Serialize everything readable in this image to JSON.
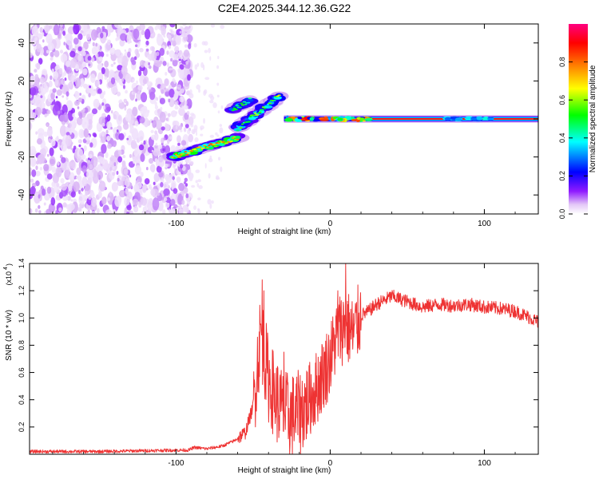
{
  "figure_title": "C2E4.2025.344.12.36.G22",
  "chart_data": [
    {
      "type": "heatmap",
      "title": "C2E4.2025.344.12.36.G22",
      "xlabel": "Height of straight line (km)",
      "ylabel": "Frequency (Hz)",
      "xlim": [
        -195,
        135
      ],
      "ylim": [
        -50,
        50
      ],
      "x_ticks": [
        -100,
        0,
        100
      ],
      "x_tick_labels": [
        "-100",
        "0",
        "100"
      ],
      "y_ticks": [
        -40,
        -20,
        0,
        20,
        40
      ],
      "y_tick_labels": [
        "-40",
        "-20",
        "0",
        "20",
        "40"
      ],
      "colorbar": {
        "label": "Normalized spectral amplitude",
        "range": [
          0,
          1
        ],
        "ticks": [
          0.0,
          0.2,
          0.4,
          0.6,
          0.8
        ],
        "tick_labels": [
          "0.0",
          "0.2",
          "0.4",
          "0.6",
          "0.8"
        ],
        "colors": [
          "#ffffff",
          "#d9b3f5",
          "#7f00ff",
          "#0000ff",
          "#00ffff",
          "#00ff00",
          "#ffff00",
          "#ff8000",
          "#ff0000",
          "#ff0080"
        ]
      },
      "noise_region_x": [
        -195,
        -90
      ],
      "features": [
        {
          "name": "main-line",
          "x": [
            -30,
            135
          ],
          "freq": [
            0,
            0
          ],
          "amplitude": 0.9
        },
        {
          "name": "rising-trace",
          "x": [
            -102,
            -60
          ],
          "freq": [
            -20,
            -10
          ],
          "amplitude": 0.75
        },
        {
          "name": "upper-branch",
          "x": [
            -60,
            -33
          ],
          "freq": [
            -5,
            12
          ],
          "amplitude": 0.6
        },
        {
          "name": "side-blob",
          "x": [
            -63,
            -52
          ],
          "freq": [
            5,
            10
          ],
          "amplitude": 0.55
        }
      ]
    },
    {
      "type": "line",
      "xlabel": "Height of straight line (km)",
      "ylabel": "SNR (10 * v/v)",
      "y_multiplier_label": "(x10",
      "y_multiplier_exp": "4",
      "xlim": [
        -195,
        135
      ],
      "ylim": [
        0,
        1.4
      ],
      "x_ticks": [
        -100,
        0,
        100
      ],
      "x_tick_labels": [
        "-100",
        "0",
        "100"
      ],
      "y_ticks": [
        0.2,
        0.4,
        0.6,
        0.8,
        1.0,
        1.2,
        1.4
      ],
      "y_tick_labels": [
        "0.2",
        "0.4",
        "0.6",
        "0.8",
        "1.0",
        "1.2",
        "1.4"
      ],
      "line_color": "#ee3333",
      "series": [
        {
          "name": "SNR",
          "x": [
            -195,
            -150,
            -100,
            -92,
            -88,
            -80,
            -70,
            -62,
            -55,
            -50,
            -45,
            -40,
            -35,
            -30,
            -25,
            -20,
            -15,
            -10,
            -5,
            0,
            5,
            10,
            15,
            20,
            25,
            30,
            40,
            50,
            60,
            70,
            80,
            90,
            100,
            110,
            120,
            130,
            135
          ],
          "values": [
            0.02,
            0.02,
            0.03,
            0.03,
            0.05,
            0.04,
            0.06,
            0.1,
            0.16,
            0.35,
            0.9,
            0.55,
            0.4,
            0.3,
            0.28,
            0.3,
            0.38,
            0.46,
            0.58,
            0.7,
            0.9,
            0.95,
            0.88,
            1.02,
            1.05,
            1.1,
            1.16,
            1.12,
            1.08,
            1.1,
            1.09,
            1.1,
            1.08,
            1.07,
            1.05,
            1.0,
            0.97
          ],
          "peaks": [
            [
              -44,
              1.28
            ],
            [
              -43,
              1.2
            ],
            [
              10,
              1.4
            ],
            [
              5,
              1.2
            ],
            [
              -20,
              0.45
            ],
            [
              -30,
              0.75
            ]
          ]
        }
      ]
    }
  ]
}
